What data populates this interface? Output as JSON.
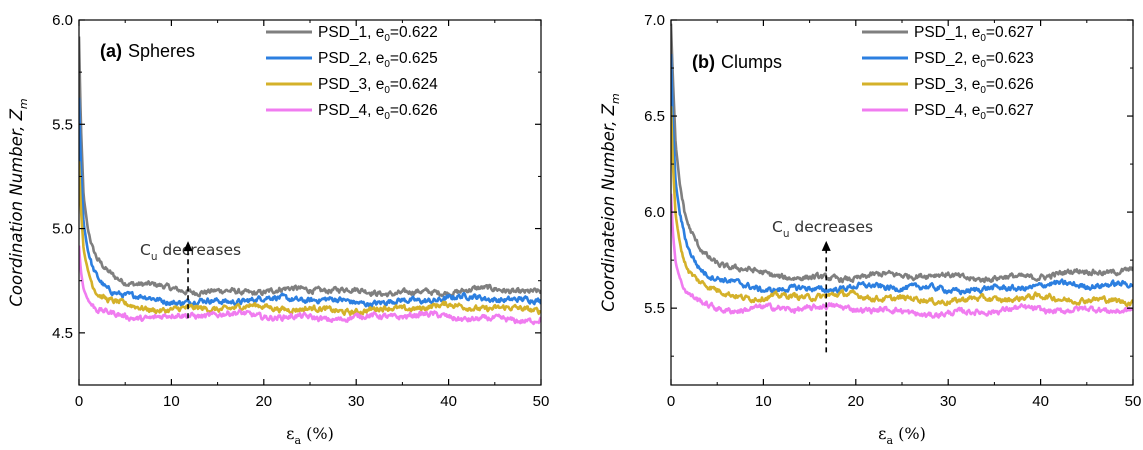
{
  "chart_data": [
    {
      "type": "line",
      "title": "",
      "panel_label": "(a)",
      "panel_name": "Spheres",
      "xlabel": "ε",
      "xlabel_sub": "a",
      "xlabel_unit": " (%)",
      "ylabel": "Coordination Number, Z",
      "ylabel_sub": "m",
      "xlim": [
        0,
        50
      ],
      "ylim": [
        4.25,
        6.0
      ],
      "xticks": [
        "0",
        "10",
        "20",
        "30",
        "40",
        "50"
      ],
      "yticks": [
        "4.5",
        "5.0",
        "5.5",
        "6.0"
      ],
      "legend_position": "top-right",
      "annotation": {
        "text_main": "C",
        "text_sub": "u",
        "text_rest": " decreases",
        "arrow_x": 11.8,
        "arrow_y_from": 4.57,
        "arrow_y_to": 4.94
      },
      "series": [
        {
          "name": "PSD_1, e",
          "name_sub": "0",
          "name_rest": "=0.622",
          "color": "#7f7f7f",
          "x": [
            0,
            0.2,
            0.5,
            1,
            1.5,
            2,
            3,
            4,
            5,
            6,
            8,
            10,
            15,
            20,
            25,
            30,
            35,
            40,
            45,
            50
          ],
          "values": [
            5.92,
            5.5,
            5.15,
            4.98,
            4.89,
            4.84,
            4.79,
            4.76,
            4.74,
            4.73,
            4.72,
            4.71,
            4.705,
            4.7,
            4.7,
            4.7,
            4.7,
            4.7,
            4.7,
            4.69
          ]
        },
        {
          "name": "PSD_2, e",
          "name_sub": "0",
          "name_rest": "=0.625",
          "color": "#2c7fe0",
          "x": [
            0,
            0.2,
            0.5,
            1,
            1.5,
            2,
            3,
            4,
            5,
            6,
            8,
            10,
            15,
            20,
            25,
            30,
            35,
            40,
            45,
            50
          ],
          "values": [
            5.62,
            5.3,
            5.02,
            4.88,
            4.8,
            4.76,
            4.71,
            4.69,
            4.675,
            4.67,
            4.665,
            4.66,
            4.655,
            4.655,
            4.655,
            4.655,
            4.655,
            4.66,
            4.66,
            4.655
          ]
        },
        {
          "name": "PSD_3, e",
          "name_sub": "0",
          "name_rest": "=0.624",
          "color": "#d4b12a",
          "x": [
            0,
            0.2,
            0.5,
            1,
            1.5,
            2,
            3,
            4,
            5,
            6,
            8,
            10,
            15,
            20,
            25,
            30,
            35,
            40,
            45,
            50
          ],
          "values": [
            5.32,
            5.1,
            4.9,
            4.79,
            4.73,
            4.69,
            4.66,
            4.645,
            4.635,
            4.63,
            4.625,
            4.62,
            4.615,
            4.615,
            4.615,
            4.615,
            4.615,
            4.62,
            4.62,
            4.62
          ]
        },
        {
          "name": "PSD_4, e",
          "name_sub": "0",
          "name_rest": "=0.626",
          "color": "#f07cf0",
          "x": [
            0,
            0.2,
            0.5,
            1,
            1.5,
            2,
            3,
            4,
            5,
            6,
            8,
            10,
            15,
            20,
            25,
            30,
            35,
            40,
            45,
            50
          ],
          "values": [
            4.92,
            4.8,
            4.71,
            4.66,
            4.63,
            4.61,
            4.6,
            4.595,
            4.59,
            4.585,
            4.58,
            4.58,
            4.58,
            4.58,
            4.58,
            4.575,
            4.575,
            4.575,
            4.57,
            4.57
          ]
        }
      ]
    },
    {
      "type": "line",
      "title": "",
      "panel_label": "(b)",
      "panel_name": "Clumps",
      "xlabel": "ε",
      "xlabel_sub": "a",
      "xlabel_unit": " (%)",
      "ylabel": "Coordinateion Number, Z",
      "ylabel_sub": "m",
      "xlim": [
        0,
        50
      ],
      "ylim": [
        5.1,
        7.0
      ],
      "xticks": [
        "0",
        "10",
        "20",
        "30",
        "40",
        "50"
      ],
      "yticks": [
        "5.5",
        "6.0",
        "6.5",
        "7.0"
      ],
      "legend_position": "top-right",
      "annotation": {
        "text_main": "C",
        "text_sub": "u",
        "text_rest": " decreases",
        "arrow_x": 16.8,
        "arrow_y_from": 5.27,
        "arrow_y_to": 5.85
      },
      "series": [
        {
          "name": "PSD_1, e",
          "name_sub": "0",
          "name_rest": "=0.627",
          "color": "#7f7f7f",
          "x": [
            0,
            0.2,
            0.5,
            1,
            1.5,
            2,
            3,
            4,
            5,
            6,
            8,
            10,
            15,
            20,
            25,
            30,
            35,
            40,
            45,
            50
          ],
          "values": [
            6.98,
            6.7,
            6.35,
            6.12,
            5.98,
            5.9,
            5.81,
            5.76,
            5.73,
            5.71,
            5.69,
            5.68,
            5.665,
            5.66,
            5.665,
            5.665,
            5.665,
            5.67,
            5.68,
            5.69
          ]
        },
        {
          "name": "PSD_2, e",
          "name_sub": "0",
          "name_rest": "=0.623",
          "color": "#2c7fe0",
          "x": [
            0,
            0.2,
            0.5,
            1,
            1.5,
            2,
            3,
            4,
            5,
            6,
            8,
            10,
            15,
            20,
            25,
            30,
            35,
            40,
            45,
            50
          ],
          "values": [
            6.82,
            6.45,
            6.15,
            5.97,
            5.86,
            5.79,
            5.71,
            5.67,
            5.65,
            5.635,
            5.62,
            5.61,
            5.605,
            5.6,
            5.605,
            5.605,
            5.605,
            5.61,
            5.615,
            5.625
          ]
        },
        {
          "name": "PSD_3, e",
          "name_sub": "0",
          "name_rest": "=0.626",
          "color": "#d4b12a",
          "x": [
            0,
            0.2,
            0.5,
            1,
            1.5,
            2,
            3,
            4,
            5,
            6,
            8,
            10,
            15,
            20,
            25,
            30,
            35,
            40,
            45,
            50
          ],
          "values": [
            6.55,
            6.25,
            5.98,
            5.83,
            5.74,
            5.69,
            5.64,
            5.61,
            5.59,
            5.58,
            5.57,
            5.565,
            5.56,
            5.555,
            5.55,
            5.55,
            5.545,
            5.545,
            5.545,
            5.545
          ]
        },
        {
          "name": "PSD_4, e",
          "name_sub": "0",
          "name_rest": "=0.627",
          "color": "#f07cf0",
          "x": [
            0,
            0.2,
            0.5,
            1,
            1.5,
            2,
            3,
            4,
            5,
            6,
            8,
            10,
            15,
            20,
            25,
            30,
            35,
            40,
            45,
            50
          ],
          "values": [
            6.1,
            5.9,
            5.74,
            5.65,
            5.6,
            5.57,
            5.54,
            5.52,
            5.51,
            5.505,
            5.5,
            5.5,
            5.49,
            5.5,
            5.49,
            5.47,
            5.48,
            5.49,
            5.5,
            5.5
          ]
        }
      ]
    }
  ]
}
